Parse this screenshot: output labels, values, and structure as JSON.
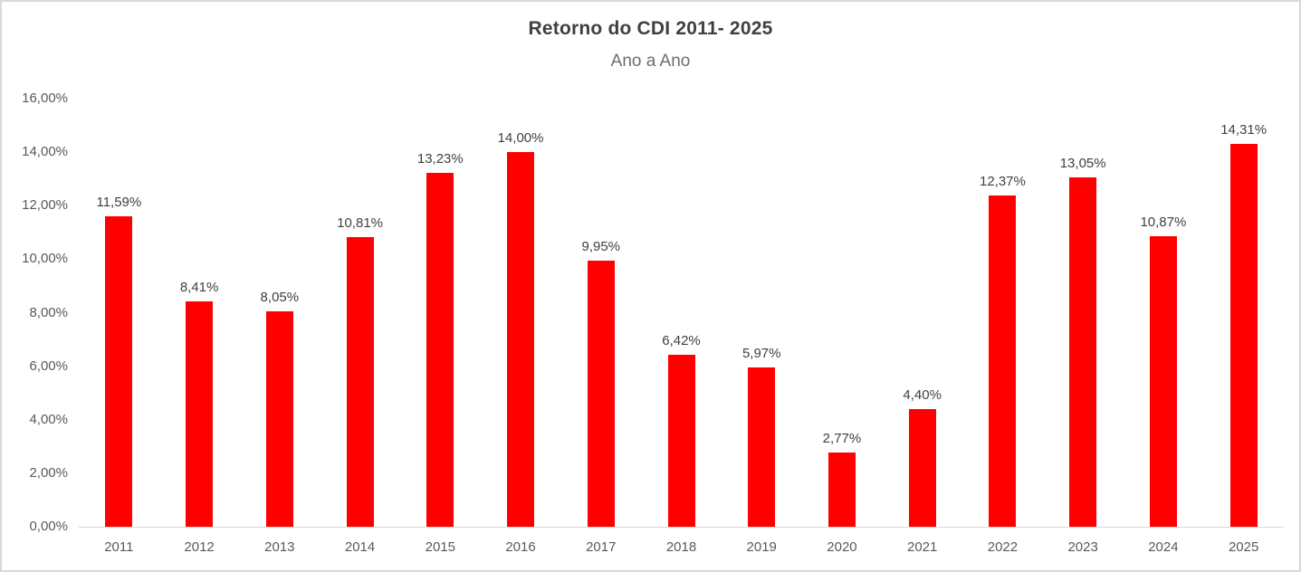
{
  "chart": {
    "title": "Retorno do CDI 2011- 2025",
    "subtitle": "Ano a Ano"
  },
  "chart_data": {
    "type": "bar",
    "title": "Retorno do CDI 2011- 2025",
    "subtitle": "Ano a Ano",
    "categories": [
      "2011",
      "2012",
      "2013",
      "2014",
      "2015",
      "2016",
      "2017",
      "2018",
      "2019",
      "2020",
      "2021",
      "2022",
      "2023",
      "2024",
      "2025"
    ],
    "values": [
      11.59,
      8.41,
      8.05,
      10.81,
      13.23,
      14.0,
      9.95,
      6.42,
      5.97,
      2.77,
      4.4,
      12.37,
      13.05,
      10.87,
      14.31
    ],
    "data_labels": [
      "11,59%",
      "8,41%",
      "8,05%",
      "10,81%",
      "13,23%",
      "14,00%",
      "9,95%",
      "6,42%",
      "5,97%",
      "2,77%",
      "4,40%",
      "12,37%",
      "13,05%",
      "10,87%",
      "14,31%"
    ],
    "y_tick_values": [
      0,
      2,
      4,
      6,
      8,
      10,
      12,
      14,
      16
    ],
    "y_tick_labels": [
      "0,00%",
      "2,00%",
      "4,00%",
      "6,00%",
      "8,00%",
      "10,00%",
      "12,00%",
      "14,00%",
      "16,00%"
    ],
    "ylim": [
      0,
      16
    ],
    "xlabel": "",
    "ylabel": "",
    "grid": false,
    "legend": "none"
  },
  "colors": {
    "bar": "#ff0000",
    "title": "#404040",
    "subtitle": "#6e6e6e",
    "axis_label": "#595959",
    "data_label": "#404040",
    "axis_line": "#d9d9d9",
    "frame_border": "#d9d9d9",
    "background": "#ffffff"
  }
}
